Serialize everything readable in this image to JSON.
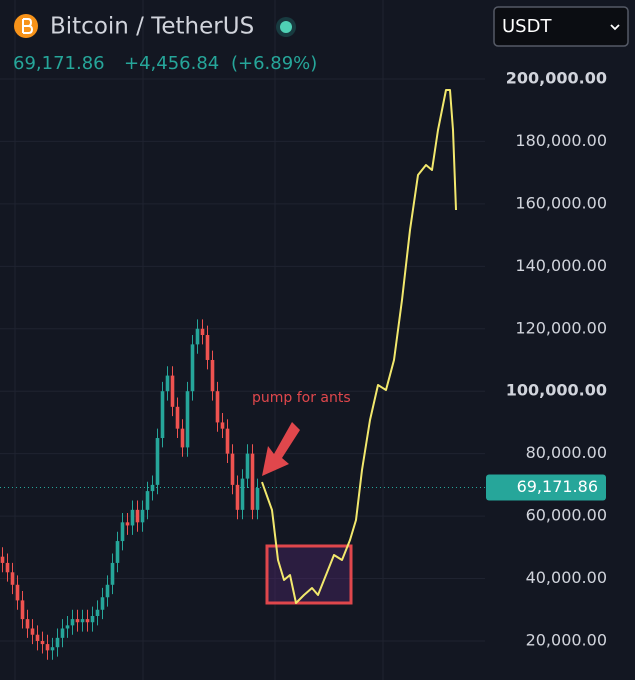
{
  "chart_data": {
    "type": "candlestick",
    "title": "Bitcoin / TetherUS",
    "currency": "USDT",
    "last_price": {
      "value": 69171.86,
      "label": "69,171.86"
    },
    "change": "+4,456.84",
    "change_percent": "(+6.89%)",
    "annotation": "pump for ants",
    "up_color": "#26a69a",
    "down_color": "#ef5350",
    "xlim": [
      -0.5,
      95.5
    ],
    "ylim": [
      7500,
      225300
    ],
    "yticks": [
      {
        "value": 20000,
        "label": "20,000.00"
      },
      {
        "value": 40000,
        "label": "40,000.00"
      },
      {
        "value": 60000,
        "label": "60,000.00"
      },
      {
        "value": 80000,
        "label": "80,000.00"
      },
      {
        "value": 100000,
        "label": "100,000.00"
      },
      {
        "value": 120000,
        "label": "120,000.00"
      },
      {
        "value": 140000,
        "label": "140,000.00"
      },
      {
        "value": 160000,
        "label": "160,000.00"
      },
      {
        "value": 180000,
        "label": "180,000.00"
      },
      {
        "value": 200000,
        "label": "200,000.00"
      }
    ],
    "grid": true,
    "open": [
      47000,
      45000,
      42000,
      38000,
      33000,
      27000,
      24000,
      22000,
      20000,
      19000,
      17000,
      18000,
      21000,
      24000,
      25000,
      27000,
      26000,
      27000,
      26000,
      28000,
      30000,
      34000,
      38000,
      45000,
      52000,
      58000,
      57000,
      62000,
      58000,
      62000,
      68000,
      70000,
      85000,
      100000,
      105000,
      95000,
      88000,
      82000,
      100000,
      115000,
      120000,
      118000,
      110000,
      100000,
      90000,
      88000,
      80000,
      70000,
      62000,
      72000,
      80000,
      62000
    ],
    "close": [
      45000,
      42000,
      38000,
      33000,
      27000,
      24000,
      22000,
      20000,
      19000,
      17000,
      18000,
      21000,
      24000,
      25000,
      27000,
      26000,
      27000,
      26000,
      28000,
      30000,
      34000,
      38000,
      45000,
      52000,
      58000,
      57000,
      62000,
      58000,
      62000,
      68000,
      70000,
      85000,
      100000,
      105000,
      95000,
      88000,
      82000,
      100000,
      115000,
      120000,
      118000,
      110000,
      100000,
      90000,
      88000,
      80000,
      70000,
      62000,
      72000,
      80000,
      62000,
      69000
    ],
    "high": [
      50000,
      48000,
      45000,
      41000,
      36000,
      30000,
      27000,
      25000,
      23000,
      22000,
      21000,
      24000,
      27000,
      28000,
      30000,
      30000,
      30000,
      30000,
      31000,
      33000,
      37000,
      41000,
      48000,
      55000,
      61000,
      61000,
      65000,
      65000,
      65000,
      71000,
      73000,
      88000,
      103000,
      108000,
      108000,
      98000,
      91000,
      103000,
      118000,
      123000,
      123000,
      121000,
      113000,
      103000,
      93000,
      91000,
      83000,
      73000,
      75000,
      83000,
      83000,
      72000
    ],
    "low": [
      42000,
      39000,
      35000,
      30000,
      24000,
      21000,
      19000,
      17000,
      16000,
      14000,
      14000,
      15000,
      18000,
      21000,
      22000,
      23000,
      23000,
      23000,
      23000,
      25000,
      27000,
      31000,
      35000,
      42000,
      49000,
      54000,
      54000,
      55000,
      55000,
      59000,
      65000,
      67000,
      82000,
      97000,
      92000,
      85000,
      79000,
      79000,
      97000,
      112000,
      115000,
      107000,
      97000,
      87000,
      85000,
      77000,
      67000,
      59000,
      59000,
      69000,
      59000,
      59000
    ],
    "projection": {
      "color": "#f2e86d",
      "x": [
        51.9,
        53.9,
        55.1,
        56.3,
        57.5,
        58.7,
        60.3,
        61.9,
        63.1,
        64.7,
        66.3,
        67.9,
        69.5,
        70.7,
        71.9,
        73.5,
        75.1,
        76.7,
        78.3,
        79.9,
        81.5,
        83.1,
        84.7,
        85.9,
        87.1,
        88.7,
        89.5,
        90.1,
        90.7
      ],
      "values": [
        70900,
        61960,
        45940,
        39540,
        41140,
        32170,
        34730,
        36980,
        34730,
        41140,
        47540,
        45940,
        52350,
        58750,
        74770,
        90780,
        101990,
        100390,
        110000,
        129220,
        151640,
        169250,
        172450,
        170850,
        183660,
        196470,
        196470,
        183660,
        158040
      ]
    }
  }
}
